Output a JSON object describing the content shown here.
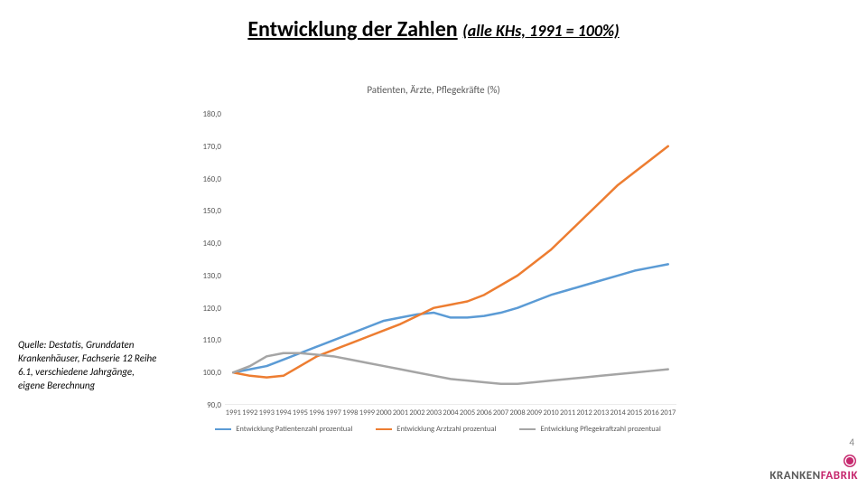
{
  "title_main": "Entwicklung der Zahlen",
  "title_sub": "(alle KHs, 1991 = 100%)",
  "chart_title": "Patienten, Ärzte, Pflegekräfte (%)",
  "source_text": "Quelle: Destatis, Grunddaten Krankenhäuser, Fachserie 12 Reihe 6.1, verschiedene Jahrgänge, eigene Berechnung",
  "page_number": "4",
  "logo_brand_pre": "KRANKEN",
  "logo_brand_accent": "FABRIK",
  "logo_sub": "",
  "chart": {
    "type": "line",
    "ylim": [
      90,
      180
    ],
    "ytick_step": 10,
    "ytick_format": ",0",
    "xcategories": [
      "1991",
      "1992",
      "1993",
      "1994",
      "1995",
      "1996",
      "1997",
      "1998",
      "1999",
      "2000",
      "2001",
      "2002",
      "2003",
      "2004",
      "2005",
      "2006",
      "2007",
      "2008",
      "2009",
      "2010",
      "2011",
      "2012",
      "2013",
      "2014",
      "2015",
      "2016",
      "2017"
    ],
    "background_color": "#ffffff",
    "axis_color": "#d9d9d9",
    "text_color": "#595959",
    "line_width": 2.5,
    "font_size_ticks": 9,
    "font_size_legend": 8.5,
    "series": [
      {
        "key": "patienten",
        "label": "Entwicklung Patientenzahl prozentual",
        "color": "#5b9bd5",
        "values": [
          100,
          101,
          102,
          104,
          106,
          108,
          110,
          112,
          114,
          116,
          117,
          118,
          118.5,
          117,
          117,
          117.5,
          118.5,
          120,
          122,
          124,
          125.5,
          127,
          128.5,
          130,
          131.5,
          132.5,
          133.5
        ]
      },
      {
        "key": "arzt",
        "label": "Entwicklung Arztzahl prozentual",
        "color": "#ed7d31",
        "values": [
          100,
          99,
          98.5,
          99,
          102,
          105,
          107,
          109,
          111,
          113,
          115,
          117.5,
          120,
          121,
          122,
          124,
          127,
          130,
          134,
          138,
          143,
          148,
          153,
          158,
          162,
          166,
          170
        ]
      },
      {
        "key": "pflege",
        "label": "Entwicklung Pflegekraftzahl prozentual",
        "color": "#a5a5a5",
        "values": [
          100,
          102,
          105,
          106,
          106,
          105.5,
          105,
          104,
          103,
          102,
          101,
          100,
          99,
          98,
          97.5,
          97,
          96.5,
          96.5,
          97,
          97.5,
          98,
          98.5,
          99,
          99.5,
          100,
          100.5,
          101
        ]
      }
    ]
  }
}
